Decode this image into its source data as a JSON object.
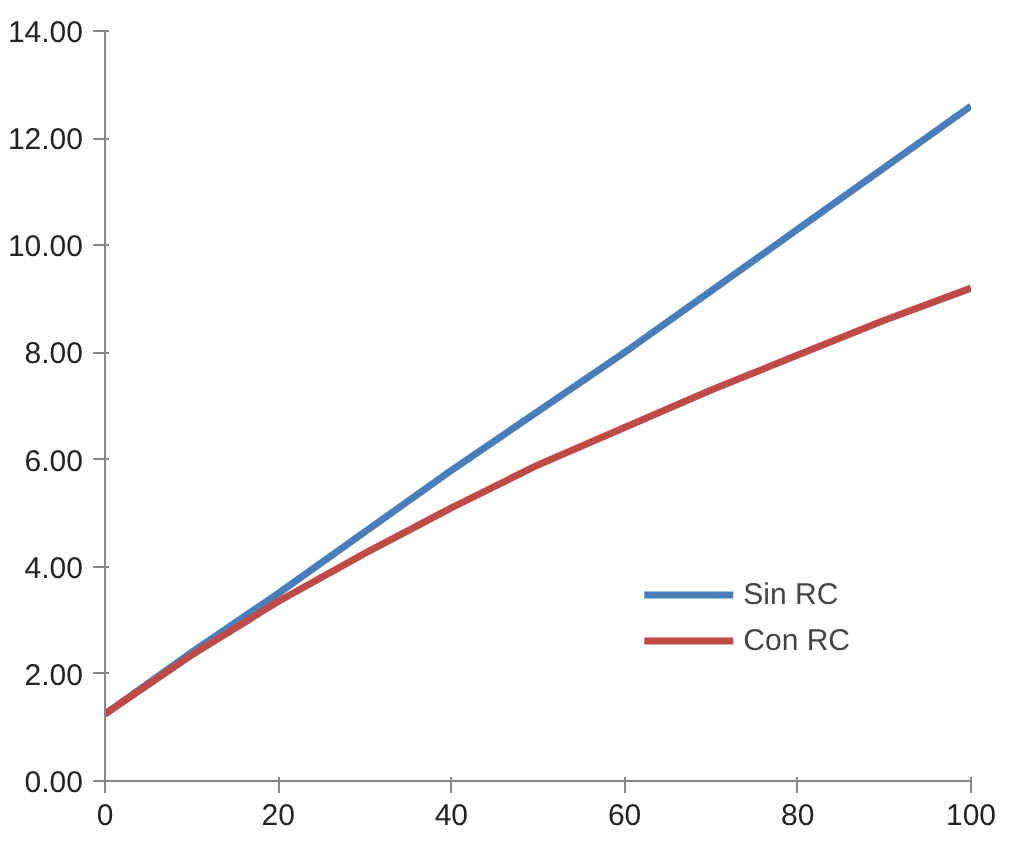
{
  "chart_data": {
    "type": "line",
    "x": [
      0,
      10,
      20,
      30,
      40,
      50,
      60,
      70,
      80,
      90,
      100
    ],
    "series": [
      {
        "name": "Sin RC",
        "color": "#4a7ebb",
        "values": [
          1.25,
          2.4,
          3.5,
          4.65,
          5.8,
          6.9,
          8.0,
          9.15,
          10.3,
          11.45,
          12.6
        ]
      },
      {
        "name": "Con RC",
        "color": "#be4b48",
        "values": [
          1.25,
          2.35,
          3.35,
          4.25,
          5.1,
          5.9,
          6.6,
          7.3,
          7.95,
          8.6,
          9.2
        ]
      }
    ],
    "xlim": [
      0,
      100
    ],
    "xticks": [
      0,
      20,
      40,
      60,
      80,
      100
    ],
    "ylim": [
      0,
      14
    ],
    "yticks": [
      {
        "value": 0,
        "label": "0.00"
      },
      {
        "value": 2,
        "label": "2.00"
      },
      {
        "value": 4,
        "label": "4.00"
      },
      {
        "value": 6,
        "label": "6.00"
      },
      {
        "value": 8,
        "label": "8.00"
      },
      {
        "value": 10,
        "label": "10.00"
      },
      {
        "value": 12,
        "label": "12.00"
      },
      {
        "value": 14,
        "label": "14.00"
      }
    ],
    "grid": false,
    "legend": "bottom right",
    "line_style": "solid"
  }
}
